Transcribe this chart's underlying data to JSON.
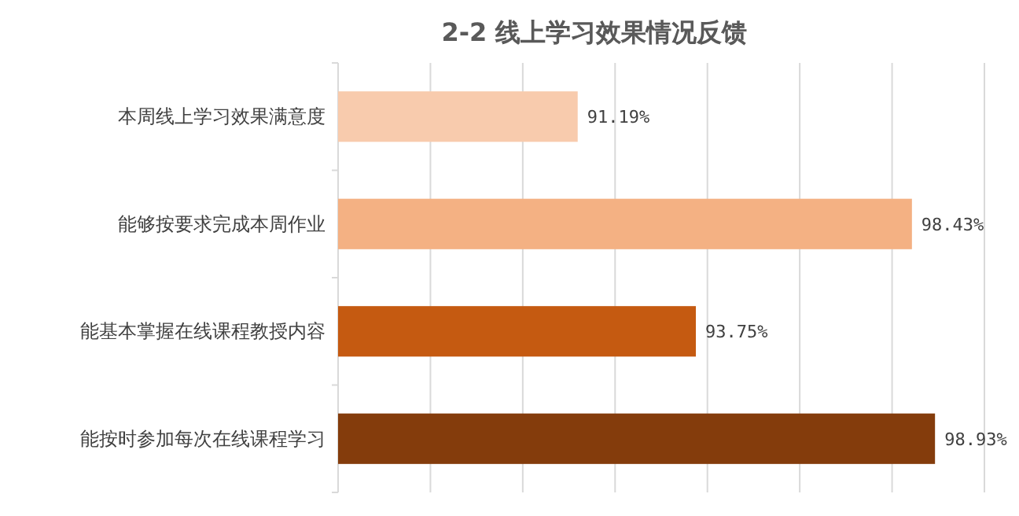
{
  "chart_data": {
    "type": "bar",
    "orientation": "horizontal",
    "title": "2-2  线上学习效果情况反馈",
    "categories": [
      "本周线上学习效果满意度",
      "能够按要求完成本周作业",
      "能基本掌握在线课程教授内容",
      "能按时参加每次在线课程学习"
    ],
    "values": [
      91.19,
      98.43,
      93.75,
      98.93
    ],
    "colors": [
      "#f8cbad",
      "#f4b183",
      "#c55a11",
      "#843c0c"
    ],
    "value_labels": [
      "91.19%",
      "98.43%",
      "93.75%",
      "98.93%"
    ],
    "xlim": [
      86,
      100
    ],
    "xticks": [
      {
        "value": 86,
        "label": null
      },
      {
        "value": 88,
        "label": null
      },
      {
        "value": 90,
        "label": null
      },
      {
        "value": 92,
        "label": null
      },
      {
        "value": 94,
        "label": null
      },
      {
        "value": 96,
        "label": null
      },
      {
        "value": 98,
        "label": null
      },
      {
        "value": 100,
        "label": null
      }
    ],
    "grid": "x",
    "tick_labels": "y"
  }
}
